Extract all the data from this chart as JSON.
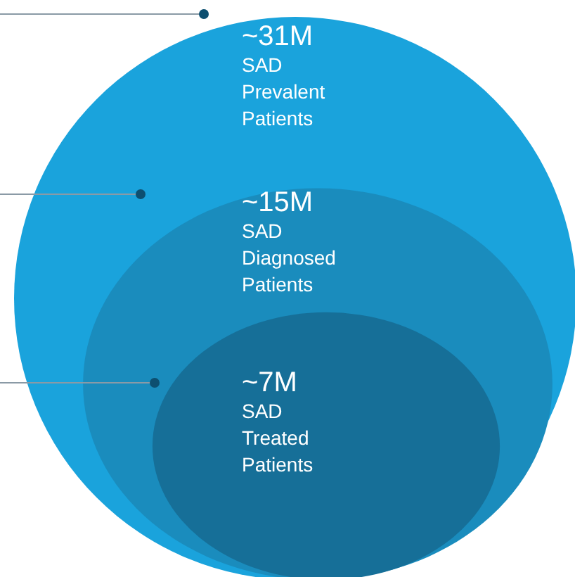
{
  "chart_data": {
    "type": "other",
    "categories": [
      "SAD Prevalent Patients",
      "SAD Diagnosed Patients",
      "SAD Treated Patients"
    ],
    "values": [
      31,
      15,
      7
    ],
    "value_labels": [
      "~31M",
      "~15M",
      "~7M"
    ],
    "colors": [
      "#1aa3dc",
      "#1a8cbd",
      "#166f98"
    ]
  }
}
